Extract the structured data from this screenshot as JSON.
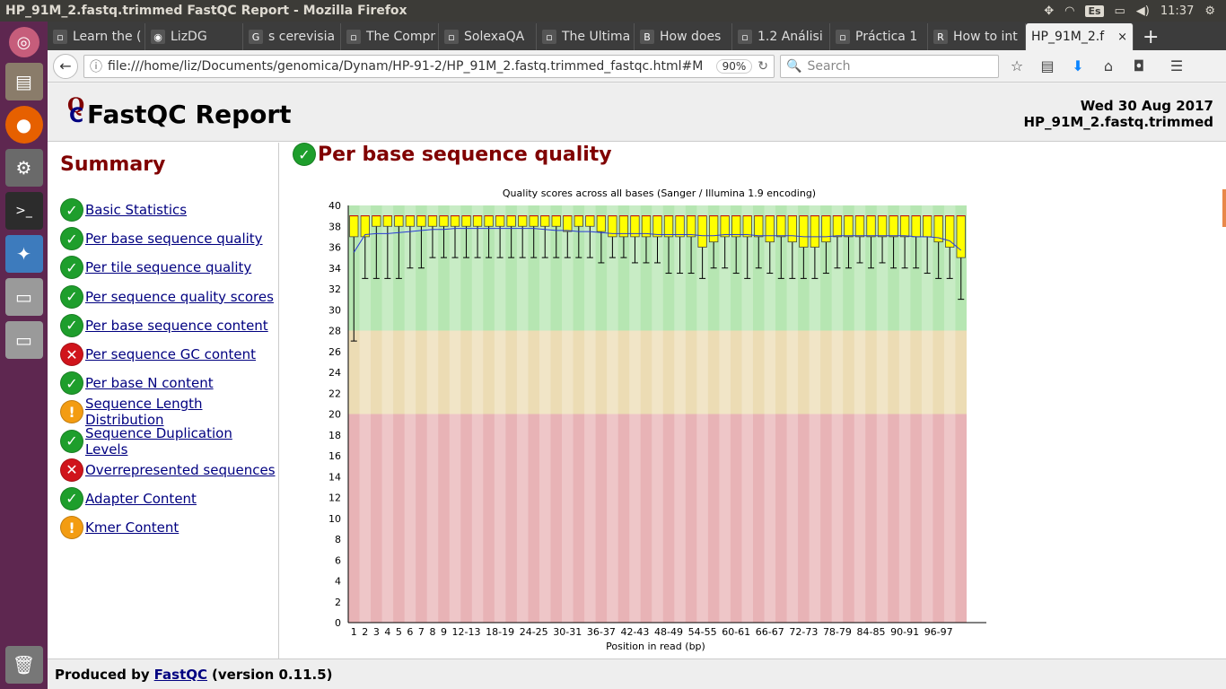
{
  "window": {
    "title": "HP_91M_2.fastq.trimmed FastQC Report - Mozilla Firefox"
  },
  "tray": {
    "keyboard": "Es",
    "time": "11:37"
  },
  "tabs": [
    {
      "label": "Learn the (",
      "icon": "page-icon"
    },
    {
      "label": "LizDG",
      "icon": "github-icon"
    },
    {
      "label": "s cerevisia",
      "icon": "google-icon"
    },
    {
      "label": "The Compr",
      "icon": "page-icon"
    },
    {
      "label": "SolexaQA",
      "icon": "page-icon"
    },
    {
      "label": "The Ultima",
      "icon": "page-icon"
    },
    {
      "label": "How does",
      "icon": "b-icon"
    },
    {
      "label": "1.2 Análisi",
      "icon": "page-icon"
    },
    {
      "label": "Práctica 1",
      "icon": "page-icon"
    },
    {
      "label": "How to int",
      "icon": "r-icon"
    },
    {
      "label": "HP_91M_2.f",
      "icon": "",
      "active": true
    }
  ],
  "navbar": {
    "url": "file:///home/liz/Documents/genomica/Dynam/HP-91-2/HP_91M_2.fastq.trimmed_fastqc.html#M",
    "zoom": "90%",
    "search_placeholder": "Search"
  },
  "report": {
    "title": "FastQC Report",
    "date": "Wed 30 Aug 2017",
    "filename": "HP_91M_2.fastq.trimmed"
  },
  "summary": {
    "title": "Summary",
    "modules": [
      {
        "label": "Basic Statistics",
        "status": "pass"
      },
      {
        "label": "Per base sequence quality",
        "status": "pass"
      },
      {
        "label": "Per tile sequence quality",
        "status": "pass"
      },
      {
        "label": "Per sequence quality scores",
        "status": "pass"
      },
      {
        "label": "Per base sequence content",
        "status": "pass"
      },
      {
        "label": "Per sequence GC content",
        "status": "fail"
      },
      {
        "label": "Per base N content",
        "status": "pass"
      },
      {
        "label": "Sequence Length Distribution",
        "status": "warn"
      },
      {
        "label": "Sequence Duplication Levels",
        "status": "pass"
      },
      {
        "label": "Overrepresented sequences",
        "status": "fail"
      },
      {
        "label": "Adapter Content",
        "status": "pass"
      },
      {
        "label": "Kmer Content",
        "status": "warn"
      }
    ]
  },
  "section": {
    "title": "Per base sequence quality"
  },
  "footer": {
    "produced_by": "Produced by",
    "link": "FastQC",
    "version": "(version 0.11.5)"
  },
  "chart_data": {
    "type": "box",
    "title": "Quality scores across all bases (Sanger / Illumina 1.9 encoding)",
    "xlabel": "Position in read (bp)",
    "ylim": [
      0,
      40
    ],
    "yticks": [
      0,
      2,
      4,
      6,
      8,
      10,
      12,
      14,
      16,
      18,
      20,
      22,
      24,
      26,
      28,
      30,
      32,
      34,
      36,
      38,
      40
    ],
    "bands": [
      {
        "from": 28,
        "to": 40,
        "color": "#b6e6b2"
      },
      {
        "from": 20,
        "to": 28,
        "color": "#ecdcb4"
      },
      {
        "from": 0,
        "to": 20,
        "color": "#e8b3b6"
      }
    ],
    "categories": [
      "1",
      "2",
      "3",
      "4",
      "5",
      "6",
      "7",
      "8",
      "9",
      "10-11",
      "12-13",
      "14-15",
      "16-17",
      "18-19",
      "20-21",
      "22-23",
      "24-25",
      "26-27",
      "28-29",
      "30-31",
      "32-33",
      "34-35",
      "36-37",
      "38-39",
      "40-41",
      "42-43",
      "44-45",
      "46-47",
      "48-49",
      "50-51",
      "52-53",
      "54-55",
      "56-57",
      "58-59",
      "60-61",
      "62-63",
      "64-65",
      "66-67",
      "68-69",
      "70-71",
      "72-73",
      "74-75",
      "76-77",
      "78-79",
      "80-81",
      "82-83",
      "84-85",
      "86-87",
      "88-89",
      "90-91",
      "92-93",
      "94-95",
      "96-97",
      "98-99",
      "100"
    ],
    "xtick_labels_shown": [
      "1",
      "2",
      "3",
      "4",
      "5",
      "6",
      "7",
      "8",
      "9",
      "12-13",
      "18-19",
      "24-25",
      "30-31",
      "36-37",
      "42-43",
      "48-49",
      "54-55",
      "60-61",
      "66-67",
      "72-73",
      "78-79",
      "84-85",
      "90-91",
      "96-97"
    ],
    "q1": [
      37,
      37,
      38,
      38,
      38,
      38,
      38,
      38,
      38,
      38,
      38,
      38,
      38,
      38,
      38,
      38,
      38,
      38,
      38,
      37.5,
      38,
      38,
      37.5,
      37,
      37,
      37,
      37,
      37,
      37,
      37,
      37,
      36,
      36.5,
      37,
      37,
      37,
      37,
      36.5,
      37,
      36.5,
      36,
      36,
      36.5,
      37,
      37,
      37,
      37,
      37,
      37,
      37,
      37,
      37,
      36.5,
      36,
      35
    ],
    "q3": [
      39,
      39,
      39,
      39,
      39,
      39,
      39,
      39,
      39,
      39,
      39,
      39,
      39,
      39,
      39,
      39,
      39,
      39,
      39,
      39,
      39,
      39,
      39,
      39,
      39,
      39,
      39,
      39,
      39,
      39,
      39,
      39,
      39,
      39,
      39,
      39,
      39,
      39,
      39,
      39,
      39,
      39,
      39,
      39,
      39,
      39,
      39,
      39,
      39,
      39,
      39,
      39,
      39,
      39,
      39
    ],
    "median": [
      39,
      39,
      39,
      39,
      39,
      39,
      39,
      39,
      39,
      39,
      39,
      39,
      39,
      39,
      39,
      39,
      39,
      39,
      39,
      39,
      39,
      39,
      39,
      39,
      39,
      39,
      39,
      39,
      39,
      39,
      39,
      39,
      39,
      39,
      39,
      39,
      39,
      39,
      39,
      39,
      39,
      39,
      39,
      39,
      39,
      39,
      39,
      39,
      39,
      39,
      39,
      39,
      39,
      39,
      39
    ],
    "lower": [
      27,
      33,
      33,
      33,
      33,
      34,
      34,
      35,
      35,
      35,
      35,
      35,
      35,
      35,
      35,
      35,
      35,
      35,
      35,
      35,
      35,
      35,
      34.5,
      35,
      35,
      34.5,
      34.5,
      34.5,
      33.5,
      33.5,
      33.5,
      33,
      34,
      34,
      33.5,
      33,
      34,
      33.5,
      33,
      33,
      33,
      33,
      33.5,
      34,
      34,
      34.5,
      34,
      34.5,
      34,
      34,
      34,
      33.5,
      33,
      33,
      31
    ],
    "upper": [
      39,
      39,
      39,
      39,
      39,
      39,
      39,
      39,
      39,
      39,
      39,
      39,
      39,
      39,
      39,
      39,
      39,
      39,
      39,
      39,
      39,
      39,
      39,
      39,
      39,
      39,
      39,
      39,
      39,
      39,
      39,
      39,
      39,
      39,
      39,
      39,
      39,
      39,
      39,
      39,
      39,
      39,
      39,
      39,
      39,
      39,
      39,
      39,
      39,
      39,
      39,
      39,
      39,
      39,
      39
    ],
    "mean": [
      35.5,
      37.2,
      37.3,
      37.3,
      37.4,
      37.5,
      37.6,
      37.7,
      37.7,
      37.8,
      37.8,
      37.8,
      37.8,
      37.8,
      37.8,
      37.8,
      37.8,
      37.7,
      37.6,
      37.6,
      37.5,
      37.5,
      37.4,
      37.3,
      37.3,
      37.3,
      37.3,
      37.2,
      37.2,
      37.2,
      37.2,
      37.1,
      37.1,
      37.2,
      37.2,
      37.2,
      37.1,
      37.1,
      37.1,
      37.1,
      37.0,
      37.0,
      37.0,
      37.1,
      37.1,
      37.1,
      37.1,
      37.1,
      37.1,
      37.1,
      37.0,
      37.0,
      36.9,
      36.6,
      35.7
    ]
  }
}
